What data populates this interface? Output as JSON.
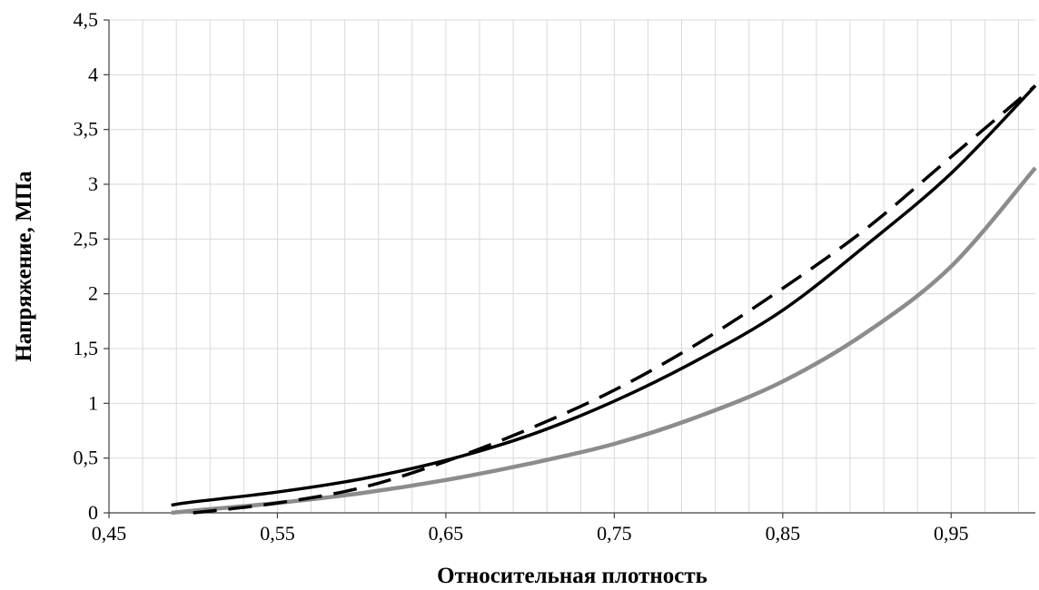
{
  "chart_data": {
    "type": "line",
    "title": "",
    "xlabel": "Относительная плотность",
    "ylabel": "Напряжение, МПа",
    "xlim": [
      0.45,
      1.0
    ],
    "ylim": [
      0,
      4.5
    ],
    "grid": true,
    "minor_x_grid_step": 0.02,
    "x_tick_labels": [
      "0,45",
      "0,55",
      "0,65",
      "0,75",
      "0,85",
      "0,95"
    ],
    "x_tick_values": [
      0.45,
      0.55,
      0.65,
      0.75,
      0.85,
      0.95
    ],
    "y_tick_labels": [
      "0",
      "0,5",
      "1",
      "1,5",
      "2",
      "2,5",
      "3",
      "3,5",
      "4",
      "4,5"
    ],
    "y_tick_values": [
      0,
      0.5,
      1,
      1.5,
      2,
      2.5,
      3,
      3.5,
      4,
      4.5
    ],
    "series": [
      {
        "style": "solid-black",
        "color": "#000000",
        "x": [
          0.487,
          0.5,
          0.55,
          0.6,
          0.65,
          0.7,
          0.75,
          0.8,
          0.85,
          0.9,
          0.95,
          1.0
        ],
        "values": [
          0.07,
          0.1,
          0.19,
          0.31,
          0.48,
          0.71,
          1.02,
          1.4,
          1.85,
          2.45,
          3.1,
          3.9
        ]
      },
      {
        "style": "dashed-black",
        "color": "#000000",
        "x": [
          0.5,
          0.55,
          0.6,
          0.65,
          0.7,
          0.75,
          0.8,
          0.85,
          0.9,
          0.95,
          1.0
        ],
        "values": [
          0.0,
          0.09,
          0.23,
          0.47,
          0.77,
          1.12,
          1.55,
          2.05,
          2.6,
          3.25,
          3.9
        ]
      },
      {
        "style": "solid-gray",
        "color": "#8c8c8c",
        "x": [
          0.487,
          0.5,
          0.55,
          0.6,
          0.65,
          0.7,
          0.75,
          0.8,
          0.85,
          0.9,
          0.95,
          1.0
        ],
        "values": [
          0.0,
          0.02,
          0.09,
          0.18,
          0.3,
          0.45,
          0.63,
          0.88,
          1.2,
          1.65,
          2.25,
          3.15
        ]
      }
    ]
  }
}
